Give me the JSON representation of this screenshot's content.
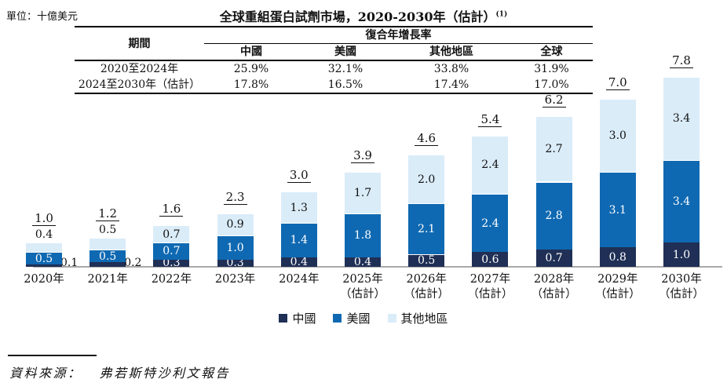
{
  "unit_label": "單位：十億美元",
  "title": {
    "text": "全球重組蛋白試劑市場，2020-2030年（估計）",
    "superscript": "(1)"
  },
  "cagr_table": {
    "period_header": "期間",
    "group_header": "復合年增長率",
    "columns": [
      "中國",
      "美國",
      "其他地區",
      "全球"
    ],
    "rows": [
      {
        "period": "2020至2024年",
        "values": [
          "25.9%",
          "32.1%",
          "33.8%",
          "31.9%"
        ]
      },
      {
        "period": "2024至2030年（估計）",
        "values": [
          "17.8%",
          "16.5%",
          "17.4%",
          "17.0%"
        ]
      }
    ]
  },
  "chart_data": {
    "type": "bar",
    "stacked": true,
    "title": "全球重組蛋白試劑市場，2020-2030年（估計）",
    "unit": "十億美元",
    "categories": [
      "2020年",
      "2021年",
      "2022年",
      "2023年",
      "2024年",
      "2025年",
      "2026年",
      "2027年",
      "2028年",
      "2029年",
      "2030年"
    ],
    "estimate_suffix": "（估計）",
    "estimated_from_index": 5,
    "series": [
      {
        "name": "中國",
        "key": "china",
        "color": "#1f2f55",
        "values": [
          0.1,
          0.2,
          0.3,
          0.3,
          0.4,
          0.4,
          0.5,
          0.6,
          0.7,
          0.8,
          1.0
        ]
      },
      {
        "name": "美國",
        "key": "us",
        "color": "#0f69b2",
        "values": [
          0.5,
          0.5,
          0.7,
          1.0,
          1.4,
          1.8,
          2.1,
          2.4,
          2.8,
          3.1,
          3.4
        ]
      },
      {
        "name": "其他地區",
        "key": "other",
        "color": "#daecf8",
        "values": [
          0.4,
          0.5,
          0.7,
          0.9,
          1.3,
          1.7,
          2.0,
          2.4,
          2.7,
          3.0,
          3.4
        ]
      }
    ],
    "totals": [
      1.0,
      1.2,
      1.6,
      2.3,
      3.0,
      3.9,
      4.6,
      5.4,
      6.2,
      7.0,
      7.8
    ],
    "ylim": [
      0,
      7.8
    ],
    "grid": false,
    "y_axis_shown": false,
    "legend_position": "bottom",
    "axis_color": "#a9a9a9"
  },
  "legend": [
    "中國",
    "美國",
    "其他地區"
  ],
  "source": {
    "label": "資料來源：",
    "text": "弗若斯特沙利文報告"
  }
}
